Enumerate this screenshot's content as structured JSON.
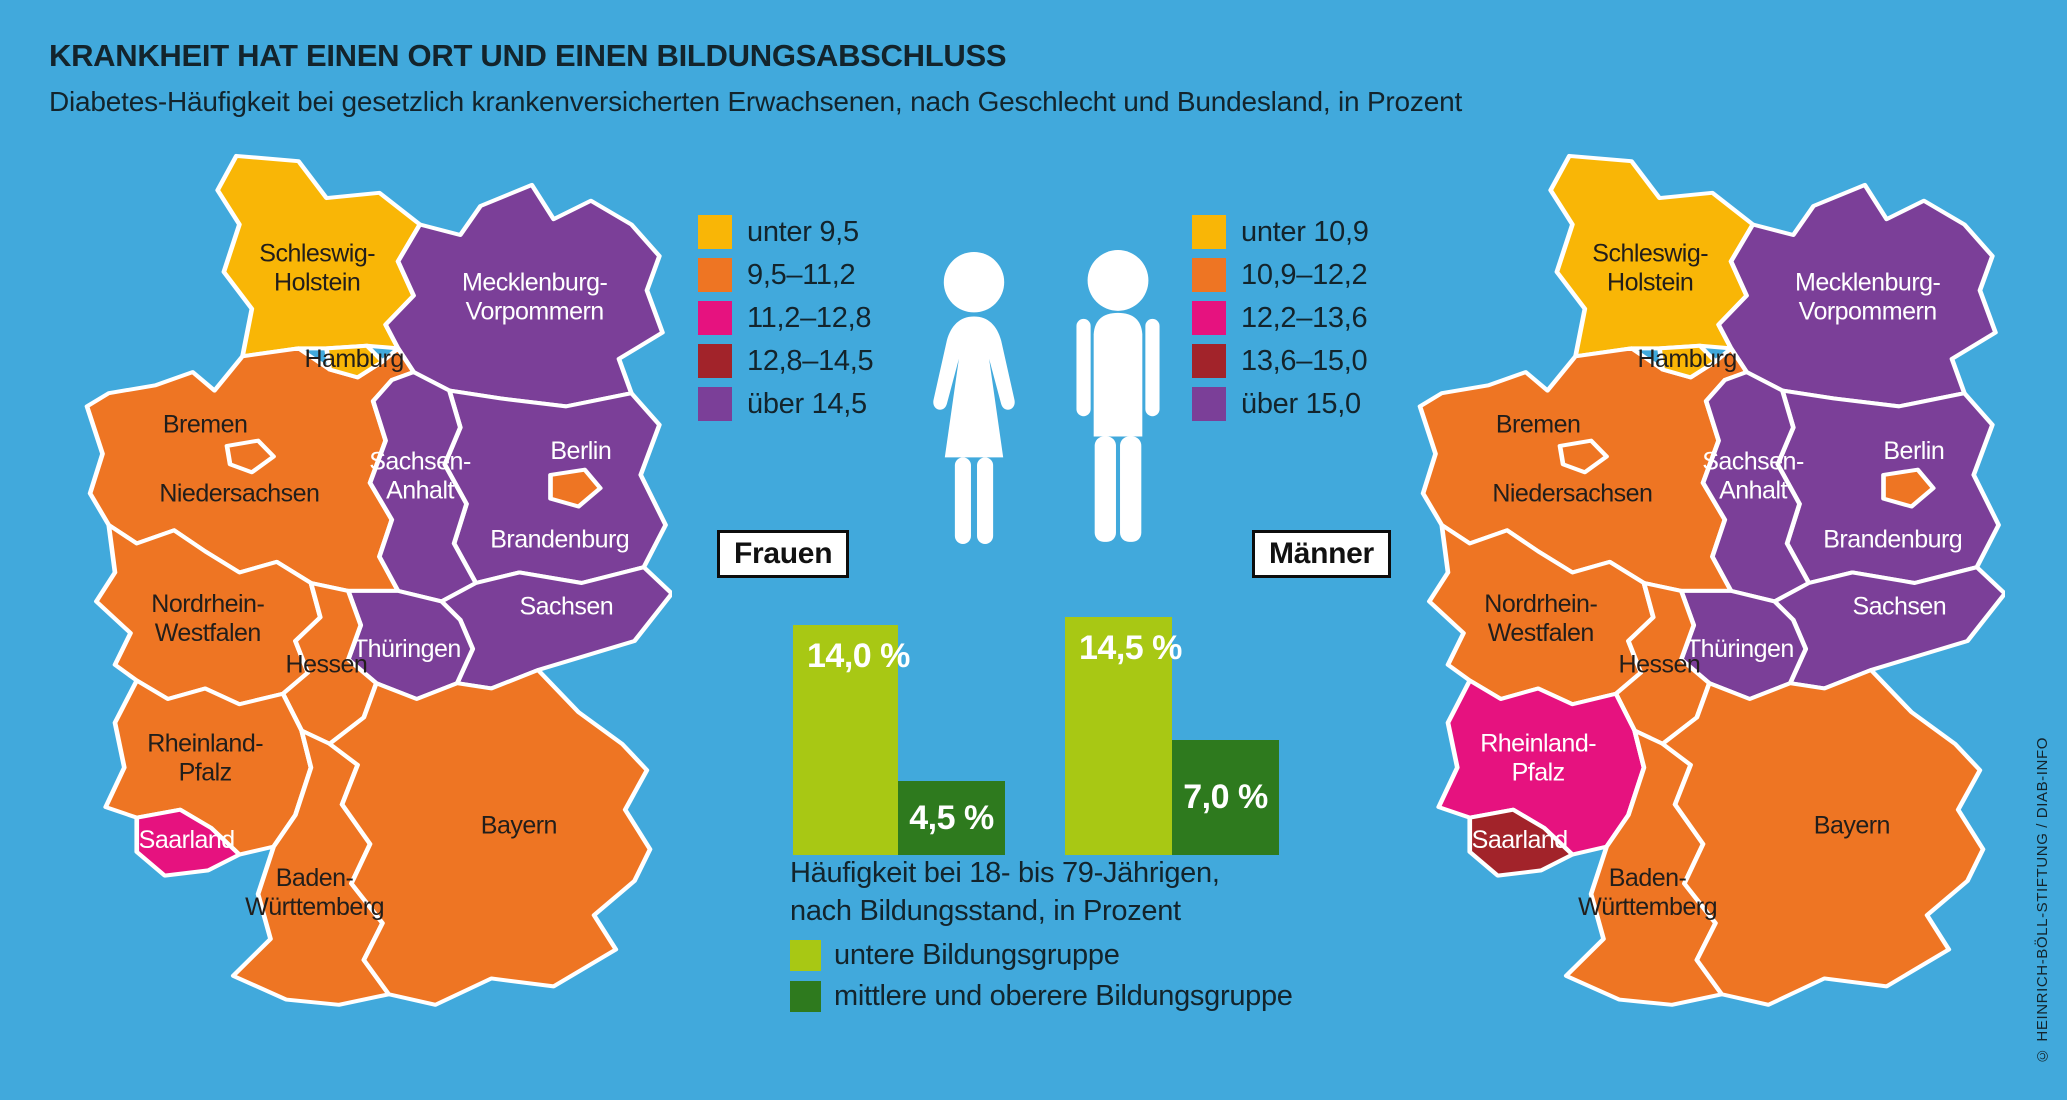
{
  "header": {
    "title": "KRANKHEIT HAT EINEN ORT UND EINEN BILDUNGSABSCHLUSS",
    "subtitle": "Diabetes-Häufigkeit bei gesetzlich krankenversicherten Erwachsenen, nach Geschlecht und Bundesland, in Prozent"
  },
  "credit": "© HEINRICH-BÖLL-STIFTUNG / DIAB-INFO",
  "colors": {
    "background": "#41A9DC",
    "yellow": "#F9B606",
    "orange": "#EE7523",
    "magenta": "#E6127F",
    "darkred": "#A2232A",
    "purple": "#7B3F98",
    "lightgreen": "#A8C814",
    "darkgreen": "#2E7A1E",
    "text_dark": "#13242C",
    "map_label_dark": "#221E1B",
    "white": "#FFFFFF"
  },
  "maps": {
    "frauen": {
      "tag": "Frauen",
      "legend": [
        {
          "label": "unter 9,5",
          "color": "#F9B606"
        },
        {
          "label": "9,5–11,2",
          "color": "#EE7523"
        },
        {
          "label": "11,2–12,8",
          "color": "#E6127F"
        },
        {
          "label": "12,8–14,5",
          "color": "#A2232A"
        },
        {
          "label": "über 14,5",
          "color": "#7B3F98"
        }
      ],
      "states": {
        "sh": {
          "name": "Schleswig-Holstein",
          "lines": [
            "Schleswig-",
            "Holstein"
          ],
          "band": "yellow",
          "label_on": "dark"
        },
        "hh": {
          "name": "Hamburg",
          "lines": [
            "Hamburg",
            ""
          ],
          "band": "yellow",
          "label_on": "dark"
        },
        "mv": {
          "name": "Mecklenburg-Vorpommern",
          "lines": [
            "Mecklenburg-",
            "Vorpommern"
          ],
          "band": "purple",
          "label_on": "light"
        },
        "ni": {
          "name": "Niedersachsen",
          "lines": [
            "Niedersachsen",
            ""
          ],
          "band": "orange",
          "label_on": "dark"
        },
        "hb": {
          "name": "Bremen",
          "lines": [
            "Bremen",
            ""
          ],
          "band": "orange",
          "label_on": "dark"
        },
        "bb": {
          "name": "Brandenburg",
          "lines": [
            "Brandenburg",
            ""
          ],
          "band": "purple",
          "label_on": "light"
        },
        "be": {
          "name": "Berlin",
          "lines": [
            "Berlin",
            ""
          ],
          "band": "orange",
          "label_on": "light"
        },
        "st": {
          "name": "Sachsen-Anhalt",
          "lines": [
            "Sachsen-",
            "Anhalt"
          ],
          "band": "purple",
          "label_on": "light"
        },
        "sn": {
          "name": "Sachsen",
          "lines": [
            "Sachsen",
            ""
          ],
          "band": "purple",
          "label_on": "light"
        },
        "th": {
          "name": "Thüringen",
          "lines": [
            "Thüringen",
            ""
          ],
          "band": "purple",
          "label_on": "light"
        },
        "nw": {
          "name": "Nordrhein-Westfalen",
          "lines": [
            "Nordrhein-",
            "Westfalen"
          ],
          "band": "orange",
          "label_on": "dark"
        },
        "he": {
          "name": "Hessen",
          "lines": [
            "Hessen",
            ""
          ],
          "band": "orange",
          "label_on": "dark"
        },
        "rp": {
          "name": "Rheinland-Pfalz",
          "lines": [
            "Rheinland-",
            "Pfalz"
          ],
          "band": "orange",
          "label_on": "dark"
        },
        "sl": {
          "name": "Saarland",
          "lines": [
            "Saarland",
            ""
          ],
          "band": "magenta",
          "label_on": "light"
        },
        "bw": {
          "name": "Baden-Württemberg",
          "lines": [
            "Baden-",
            "Württemberg"
          ],
          "band": "orange",
          "label_on": "dark"
        },
        "by": {
          "name": "Bayern",
          "lines": [
            "Bayern",
            ""
          ],
          "band": "orange",
          "label_on": "dark"
        }
      }
    },
    "maenner": {
      "tag": "Männer",
      "legend": [
        {
          "label": "unter 10,9",
          "color": "#F9B606"
        },
        {
          "label": "10,9–12,2",
          "color": "#EE7523"
        },
        {
          "label": "12,2–13,6",
          "color": "#E6127F"
        },
        {
          "label": "13,6–15,0",
          "color": "#A2232A"
        },
        {
          "label": "über 15,0",
          "color": "#7B3F98"
        }
      ],
      "states": {
        "sh": {
          "name": "Schleswig-Holstein",
          "lines": [
            "Schleswig-",
            "Holstein"
          ],
          "band": "yellow",
          "label_on": "dark"
        },
        "hh": {
          "name": "Hamburg",
          "lines": [
            "Hamburg",
            ""
          ],
          "band": "yellow",
          "label_on": "dark"
        },
        "mv": {
          "name": "Mecklenburg-Vorpommern",
          "lines": [
            "Mecklenburg-",
            "Vorpommern"
          ],
          "band": "purple",
          "label_on": "light"
        },
        "ni": {
          "name": "Niedersachsen",
          "lines": [
            "Niedersachsen",
            ""
          ],
          "band": "orange",
          "label_on": "dark"
        },
        "hb": {
          "name": "Bremen",
          "lines": [
            "Bremen",
            ""
          ],
          "band": "orange",
          "label_on": "dark"
        },
        "bb": {
          "name": "Brandenburg",
          "lines": [
            "Brandenburg",
            ""
          ],
          "band": "purple",
          "label_on": "light"
        },
        "be": {
          "name": "Berlin",
          "lines": [
            "Berlin",
            ""
          ],
          "band": "orange",
          "label_on": "light"
        },
        "st": {
          "name": "Sachsen-Anhalt",
          "lines": [
            "Sachsen-",
            "Anhalt"
          ],
          "band": "purple",
          "label_on": "light"
        },
        "sn": {
          "name": "Sachsen",
          "lines": [
            "Sachsen",
            ""
          ],
          "band": "purple",
          "label_on": "light"
        },
        "th": {
          "name": "Thüringen",
          "lines": [
            "Thüringen",
            ""
          ],
          "band": "purple",
          "label_on": "light"
        },
        "nw": {
          "name": "Nordrhein-Westfalen",
          "lines": [
            "Nordrhein-",
            "Westfalen"
          ],
          "band": "orange",
          "label_on": "dark"
        },
        "he": {
          "name": "Hessen",
          "lines": [
            "Hessen",
            ""
          ],
          "band": "orange",
          "label_on": "dark"
        },
        "rp": {
          "name": "Rheinland-Pfalz",
          "lines": [
            "Rheinland-",
            "Pfalz"
          ],
          "band": "magenta",
          "label_on": "light"
        },
        "sl": {
          "name": "Saarland",
          "lines": [
            "Saarland",
            ""
          ],
          "band": "darkred",
          "label_on": "light"
        },
        "bw": {
          "name": "Baden-Württemberg",
          "lines": [
            "Baden-",
            "Württemberg"
          ],
          "band": "orange",
          "label_on": "dark"
        },
        "by": {
          "name": "Bayern",
          "lines": [
            "Bayern",
            ""
          ],
          "band": "orange",
          "label_on": "dark"
        }
      }
    }
  },
  "education_chart": {
    "note_lines": [
      "Häufigkeit bei 18- bis 79-Jährigen,",
      "nach Bildungsstand, in Prozent"
    ],
    "legend": [
      {
        "label": "untere Bildungsgruppe",
        "color": "#A8C814"
      },
      {
        "label": "mittlere und oberere Bildungsgruppe",
        "color": "#2E7A1E"
      }
    ],
    "groups": [
      {
        "name": "Frauen",
        "low": 14.0,
        "high": 4.5,
        "low_label": "14,0 %",
        "high_label": "4,5 %"
      },
      {
        "name": "Männer",
        "low": 14.5,
        "high": 7.0,
        "low_label": "14,5 %",
        "high_label": "7,0 %"
      }
    ]
  },
  "chart_data": [
    {
      "type": "heatmap",
      "subtype": "choropleth-map",
      "title": "Frauen",
      "unit": "Prozent",
      "legend": [
        {
          "range": "unter 9,5",
          "color": "#F9B606"
        },
        {
          "range": "9,5–11,2",
          "color": "#EE7523"
        },
        {
          "range": "11,2–12,8",
          "color": "#E6127F"
        },
        {
          "range": "12,8–14,5",
          "color": "#A2232A"
        },
        {
          "range": "über 14,5",
          "color": "#7B3F98"
        }
      ],
      "states": {
        "Schleswig-Holstein": "unter 9,5",
        "Hamburg": "unter 9,5",
        "Mecklenburg-Vorpommern": "über 14,5",
        "Niedersachsen": "9,5–11,2",
        "Bremen": "9,5–11,2",
        "Brandenburg": "über 14,5",
        "Berlin": "9,5–11,2",
        "Sachsen-Anhalt": "über 14,5",
        "Sachsen": "über 14,5",
        "Thüringen": "über 14,5",
        "Nordrhein-Westfalen": "9,5–11,2",
        "Hessen": "9,5–11,2",
        "Rheinland-Pfalz": "9,5–11,2",
        "Saarland": "11,2–12,8",
        "Baden-Württemberg": "9,5–11,2",
        "Bayern": "9,5–11,2"
      }
    },
    {
      "type": "heatmap",
      "subtype": "choropleth-map",
      "title": "Männer",
      "unit": "Prozent",
      "legend": [
        {
          "range": "unter 10,9",
          "color": "#F9B606"
        },
        {
          "range": "10,9–12,2",
          "color": "#EE7523"
        },
        {
          "range": "12,2–13,6",
          "color": "#E6127F"
        },
        {
          "range": "13,6–15,0",
          "color": "#A2232A"
        },
        {
          "range": "über 15,0",
          "color": "#7B3F98"
        }
      ],
      "states": {
        "Schleswig-Holstein": "unter 10,9",
        "Hamburg": "unter 10,9",
        "Mecklenburg-Vorpommern": "über 15,0",
        "Niedersachsen": "10,9–12,2",
        "Bremen": "10,9–12,2",
        "Brandenburg": "über 15,0",
        "Berlin": "10,9–12,2",
        "Sachsen-Anhalt": "über 15,0",
        "Sachsen": "über 15,0",
        "Thüringen": "über 15,0",
        "Nordrhein-Westfalen": "10,9–12,2",
        "Hessen": "10,9–12,2",
        "Rheinland-Pfalz": "12,2–13,6",
        "Saarland": "13,6–15,0",
        "Baden-Württemberg": "10,9–12,2",
        "Bayern": "10,9–12,2"
      }
    },
    {
      "type": "bar",
      "title": "Häufigkeit bei 18- bis 79-Jährigen, nach Bildungsstand, in Prozent",
      "categories": [
        "Frauen",
        "Männer"
      ],
      "series": [
        {
          "name": "untere Bildungsgruppe",
          "color": "#A8C814",
          "values": [
            14.0,
            14.5
          ]
        },
        {
          "name": "mittlere und oberere Bildungsgruppe",
          "color": "#2E7A1E",
          "values": [
            4.5,
            7.0
          ]
        }
      ],
      "value_labels": [
        [
          "14,0 %",
          "4,5 %"
        ],
        [
          "14,5 %",
          "7,0 %"
        ]
      ],
      "ylim": [
        0,
        15
      ],
      "grid": false,
      "legend_position": "bottom"
    }
  ]
}
